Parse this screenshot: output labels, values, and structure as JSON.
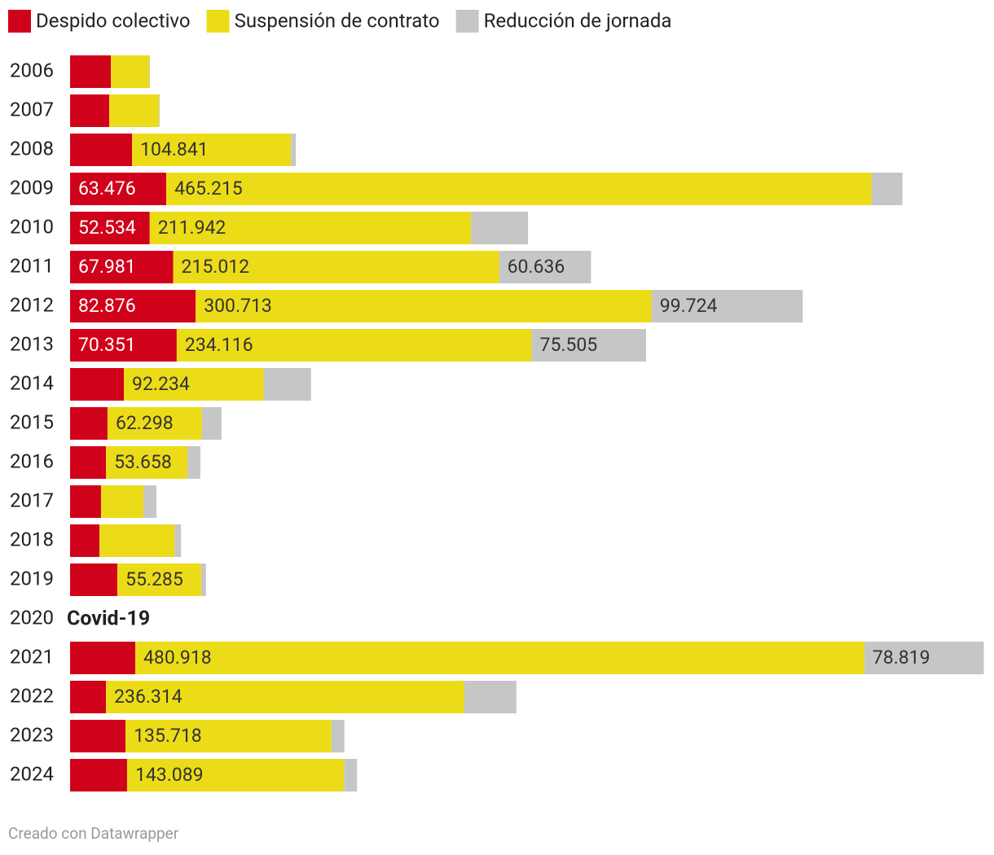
{
  "chart_data": {
    "type": "stacked_bar_horizontal",
    "categories": [
      "2006",
      "2007",
      "2008",
      "2009",
      "2010",
      "2011",
      "2012",
      "2013",
      "2014",
      "2015",
      "2016",
      "2017",
      "2018",
      "2019",
      "2020",
      "2021",
      "2022",
      "2023",
      "2024"
    ],
    "series": [
      {
        "name": "Despido colectivo",
        "color": "#d0021b",
        "values": [
          26900,
          25800,
          40900,
          63476,
          52534,
          67981,
          82876,
          70351,
          35500,
          24700,
          23700,
          20400,
          19400,
          31200,
          null,
          43000,
          23700,
          36600,
          37600
        ],
        "value_labels": [
          null,
          null,
          null,
          "63.476",
          "52.534",
          "67.981",
          "82.876",
          "70.351",
          null,
          null,
          null,
          null,
          null,
          null,
          null,
          null,
          null,
          null,
          null
        ]
      },
      {
        "name": "Suspensión de contrato",
        "color": "#ecdc18",
        "values": [
          25300,
          32800,
          104841,
          465215,
          211942,
          215012,
          300713,
          234116,
          92234,
          62298,
          53658,
          28000,
          49500,
          55285,
          null,
          480918,
          236314,
          135718,
          143089
        ],
        "value_labels": [
          null,
          null,
          "104.841",
          "465.215",
          "211.942",
          "215.012",
          "300.713",
          "234.116",
          "92.234",
          "62.298",
          "53.658",
          null,
          null,
          "55.285",
          null,
          "480.918",
          "236.314",
          "135.718",
          "143.089"
        ]
      },
      {
        "name": "Reducción de jornada",
        "color": "#c6c6c6",
        "values": [
          500,
          500,
          3200,
          20400,
          37600,
          60636,
          99724,
          75505,
          31200,
          12900,
          8600,
          8600,
          4300,
          3200,
          null,
          78819,
          34400,
          8600,
          8600
        ],
        "value_labels": [
          null,
          null,
          null,
          null,
          null,
          "60.636",
          "99.724",
          "75.505",
          null,
          null,
          null,
          null,
          null,
          null,
          null,
          "78.819",
          null,
          null,
          null
        ]
      }
    ],
    "xlim": [
      0,
      603000
    ],
    "annotation": "Covid-19",
    "source": "Creado con Datawrapper"
  }
}
